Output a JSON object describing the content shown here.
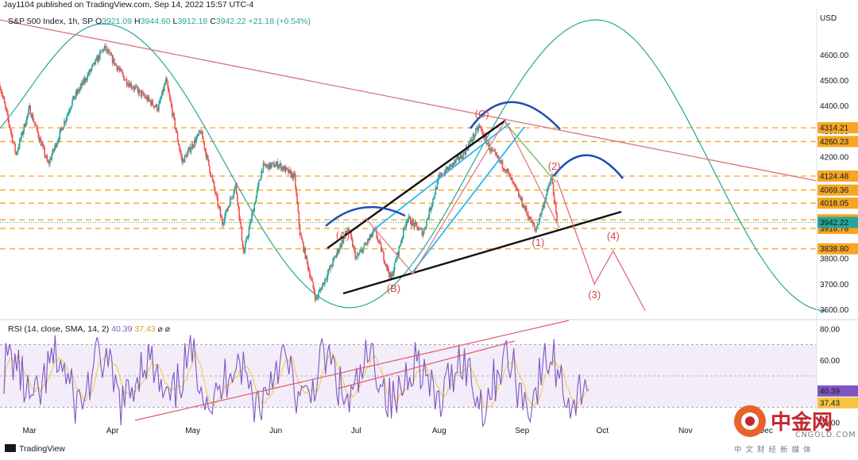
{
  "header": {
    "publisher": "Jay1104 published on TradingView.com, Sep 14, 2022 15:57 UTC-4",
    "symbol": "S&P 500 Index, 1h, SP",
    "o_label": "O",
    "o_value": "3921.09",
    "h_label": "H",
    "h_value": "3944.60",
    "l_label": "L",
    "l_value": "3912.18",
    "c_label": "C",
    "c_value": "3942.22",
    "change": "+21.18 (+0.54%)"
  },
  "currency": "USD",
  "footer": {
    "brand": "TradingView"
  },
  "watermark": {
    "name": "中金网",
    "domain": "CNGOLD.COM",
    "tagline": "中 文 财 经 新 媒 体"
  },
  "colors": {
    "up": "#26a69a",
    "down": "#ef5350",
    "rsi": "#7e57c2",
    "rsi_ma": "#f5c542",
    "levels": "#f5a623",
    "wave": "#d24a4a",
    "arc": "#1f4fb5",
    "cycle": "#26a69a",
    "channel": "#29b6f6"
  },
  "chart_data": [
    {
      "type": "candlestick",
      "title": "S&P 500 Index, 1h, SP",
      "ylabel": "USD",
      "ylim": [
        3570,
        4760
      ],
      "y_ticks": [
        "4600.00",
        "4500.00",
        "4400.00",
        "4300.00",
        "4200.00",
        "3800.00",
        "3700.00",
        "3600.00"
      ],
      "y_tick_values": [
        4600,
        4500,
        4400,
        4300,
        4200,
        3800,
        3700,
        3600
      ],
      "x_ticks": [
        "Mar",
        "Apr",
        "May",
        "Jun",
        "Jul",
        "Aug",
        "Sep",
        "Oct",
        "Nov",
        "Dec"
      ],
      "x_range": [
        "2022-02-18",
        "2022-12-20"
      ],
      "x_tick_dates": [
        "2022-03-01",
        "2022-04-01",
        "2022-05-01",
        "2022-06-01",
        "2022-07-01",
        "2022-08-01",
        "2022-09-01",
        "2022-10-01",
        "2022-11-01",
        "2022-12-01"
      ],
      "price_path": [
        [
          "2022-02-18",
          4480
        ],
        [
          "2022-02-24",
          4210
        ],
        [
          "2022-03-01",
          4390
        ],
        [
          "2022-03-08",
          4170
        ],
        [
          "2022-03-17",
          4420
        ],
        [
          "2022-03-29",
          4630
        ],
        [
          "2022-04-06",
          4500
        ],
        [
          "2022-04-18",
          4390
        ],
        [
          "2022-04-21",
          4500
        ],
        [
          "2022-04-27",
          4180
        ],
        [
          "2022-05-04",
          4300
        ],
        [
          "2022-05-12",
          3940
        ],
        [
          "2022-05-17",
          4090
        ],
        [
          "2022-05-20",
          3820
        ],
        [
          "2022-05-27",
          4160
        ],
        [
          "2022-06-02",
          4170
        ],
        [
          "2022-06-08",
          4120
        ],
        [
          "2022-06-10",
          3900
        ],
        [
          "2022-06-16",
          3640
        ],
        [
          "2022-06-28",
          3920
        ],
        [
          "2022-07-01",
          3800
        ],
        [
          "2022-07-08",
          3910
        ],
        [
          "2022-07-14",
          3720
        ],
        [
          "2022-07-20",
          3960
        ],
        [
          "2022-07-26",
          3900
        ],
        [
          "2022-08-01",
          4120
        ],
        [
          "2022-08-10",
          4210
        ],
        [
          "2022-08-16",
          4320
        ],
        [
          "2022-08-20",
          4230
        ],
        [
          "2022-08-26",
          4150
        ],
        [
          "2022-09-06",
          3910
        ],
        [
          "2022-09-12",
          4120
        ],
        [
          "2022-09-14",
          3942
        ]
      ],
      "last_price": "3942.22",
      "price_levels": [
        "4314.21",
        "4260.23",
        "4124.48",
        "4069.36",
        "4018.05",
        "3952.55",
        "3918.78",
        "3838.80"
      ],
      "wave_labels": [
        {
          "label": "(A)",
          "date": "2022-06-26",
          "price": 3878
        },
        {
          "label": "(B)",
          "date": "2022-07-15",
          "price": 3670
        },
        {
          "label": "(C)",
          "date": "2022-08-17",
          "price": 4355
        },
        {
          "label": "(1)",
          "date": "2022-09-07",
          "price": 3850
        },
        {
          "label": "(2)",
          "date": "2022-09-13",
          "price": 4150
        },
        {
          "label": "(3)",
          "date": "2022-09-28",
          "price": 3645
        },
        {
          "label": "(4)",
          "date": "2022-10-05",
          "price": 3875
        }
      ],
      "projected_path": [
        [
          "2022-09-14",
          4110
        ],
        [
          "2022-09-28",
          3700
        ],
        [
          "2022-10-05",
          3830
        ],
        [
          "2022-10-17",
          3595
        ]
      ]
    },
    {
      "type": "line",
      "title": "RSI (14, close, SMA, 14, 2)",
      "legend": [
        "40.39",
        "37.43",
        "⌀",
        "⌀"
      ],
      "series": [
        {
          "name": "RSI",
          "last": "40.39"
        },
        {
          "name": "SMA",
          "last": "37.43"
        }
      ],
      "ylim": [
        14,
        85
      ],
      "y_ticks": [
        "80.00",
        "60.00",
        "20.00"
      ],
      "y_tick_values": [
        80,
        60,
        20
      ],
      "bands": [
        30,
        50,
        70
      ]
    }
  ]
}
